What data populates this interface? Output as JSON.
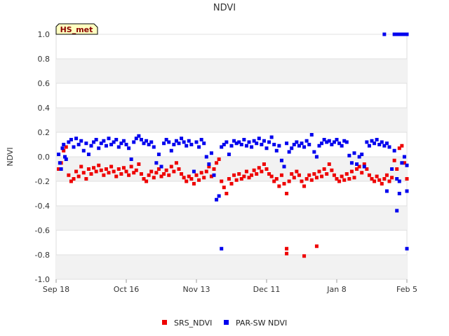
{
  "chart_data": {
    "type": "scatter",
    "title": "NDVI",
    "xlabel": "",
    "ylabel": "NDVI",
    "ylim": [
      -1.0,
      1.0
    ],
    "x_range_days": [
      0,
      140
    ],
    "x_tick_labels": [
      "Sep 18",
      "Oct 16",
      "Nov 13",
      "Dec 11",
      "Jan 8",
      "Feb 5"
    ],
    "x_tick_days": [
      0,
      28,
      56,
      84,
      112,
      140
    ],
    "y_ticks": [
      -1.0,
      -0.8,
      -0.6,
      -0.4,
      -0.2,
      0.0,
      0.2,
      0.4,
      0.6,
      0.8,
      1.0
    ],
    "y_tick_labels": [
      "-1.0",
      "-0.8",
      "-0.6",
      "-0.4",
      "-0.2",
      "0.0",
      "0.2",
      "0.4",
      "0.6",
      "0.8",
      "1.0"
    ],
    "badge": "HS_met",
    "series": [
      {
        "name": "SRS_NDVI",
        "color": "#ee0000",
        "points": [
          [
            1,
            -0.1
          ],
          [
            2,
            -0.05
          ],
          [
            3,
            0.05
          ],
          [
            4,
            0.08
          ],
          [
            5,
            -0.15
          ],
          [
            6,
            -0.2
          ],
          [
            7,
            -0.18
          ],
          [
            8,
            -0.12
          ],
          [
            9,
            -0.16
          ],
          [
            10,
            -0.08
          ],
          [
            11,
            -0.13
          ],
          [
            12,
            -0.18
          ],
          [
            13,
            -0.1
          ],
          [
            14,
            -0.14
          ],
          [
            15,
            -0.09
          ],
          [
            16,
            -0.12
          ],
          [
            17,
            -0.07
          ],
          [
            18,
            -0.11
          ],
          [
            19,
            -0.15
          ],
          [
            20,
            -0.1
          ],
          [
            21,
            -0.13
          ],
          [
            22,
            -0.08
          ],
          [
            23,
            -0.12
          ],
          [
            24,
            -0.16
          ],
          [
            25,
            -0.1
          ],
          [
            26,
            -0.14
          ],
          [
            27,
            -0.09
          ],
          [
            28,
            -0.12
          ],
          [
            29,
            -0.15
          ],
          [
            30,
            -0.08
          ],
          [
            31,
            -0.13
          ],
          [
            32,
            -0.11
          ],
          [
            33,
            -0.06
          ],
          [
            34,
            -0.14
          ],
          [
            35,
            -0.18
          ],
          [
            36,
            -0.2
          ],
          [
            37,
            -0.15
          ],
          [
            38,
            -0.12
          ],
          [
            39,
            -0.17
          ],
          [
            40,
            -0.13
          ],
          [
            41,
            -0.1
          ],
          [
            42,
            -0.16
          ],
          [
            43,
            -0.14
          ],
          [
            44,
            -0.11
          ],
          [
            45,
            -0.15
          ],
          [
            46,
            -0.08
          ],
          [
            47,
            -0.12
          ],
          [
            48,
            -0.05
          ],
          [
            49,
            -0.1
          ],
          [
            50,
            -0.14
          ],
          [
            51,
            -0.17
          ],
          [
            52,
            -0.2
          ],
          [
            53,
            -0.16
          ],
          [
            54,
            -0.18
          ],
          [
            55,
            -0.22
          ],
          [
            56,
            -0.15
          ],
          [
            57,
            -0.19
          ],
          [
            58,
            -0.13
          ],
          [
            59,
            -0.17
          ],
          [
            60,
            -0.12
          ],
          [
            61,
            -0.08
          ],
          [
            62,
            -0.16
          ],
          [
            63,
            -0.1
          ],
          [
            64,
            -0.05
          ],
          [
            65,
            -0.02
          ],
          [
            66,
            -0.2
          ],
          [
            67,
            -0.25
          ],
          [
            68,
            -0.3
          ],
          [
            69,
            -0.18
          ],
          [
            70,
            -0.22
          ],
          [
            71,
            -0.15
          ],
          [
            72,
            -0.19
          ],
          [
            73,
            -0.14
          ],
          [
            74,
            -0.18
          ],
          [
            75,
            -0.16
          ],
          [
            76,
            -0.12
          ],
          [
            77,
            -0.17
          ],
          [
            78,
            -0.15
          ],
          [
            79,
            -0.11
          ],
          [
            80,
            -0.14
          ],
          [
            81,
            -0.09
          ],
          [
            82,
            -0.12
          ],
          [
            83,
            -0.06
          ],
          [
            84,
            -0.1
          ],
          [
            85,
            -0.14
          ],
          [
            86,
            -0.16
          ],
          [
            87,
            -0.2
          ],
          [
            88,
            -0.18
          ],
          [
            89,
            -0.24
          ],
          [
            90,
            -0.15
          ],
          [
            91,
            -0.22
          ],
          [
            92,
            -0.3
          ],
          [
            93,
            -0.2
          ],
          [
            94,
            -0.14
          ],
          [
            95,
            -0.17
          ],
          [
            96,
            -0.12
          ],
          [
            97,
            -0.15
          ],
          [
            98,
            -0.2
          ],
          [
            99,
            -0.24
          ],
          [
            100,
            -0.18
          ],
          [
            101,
            -0.15
          ],
          [
            102,
            -0.19
          ],
          [
            103,
            -0.14
          ],
          [
            104,
            -0.17
          ],
          [
            105,
            -0.12
          ],
          [
            106,
            -0.16
          ],
          [
            107,
            -0.1
          ],
          [
            108,
            -0.14
          ],
          [
            109,
            -0.06
          ],
          [
            110,
            -0.11
          ],
          [
            111,
            -0.15
          ],
          [
            112,
            -0.18
          ],
          [
            113,
            -0.2
          ],
          [
            114,
            -0.16
          ],
          [
            115,
            -0.19
          ],
          [
            116,
            -0.14
          ],
          [
            117,
            -0.18
          ],
          [
            118,
            -0.12
          ],
          [
            119,
            -0.17
          ],
          [
            120,
            -0.1
          ],
          [
            121,
            -0.08
          ],
          [
            122,
            -0.13
          ],
          [
            123,
            -0.06
          ],
          [
            124,
            -0.1
          ],
          [
            125,
            -0.15
          ],
          [
            126,
            -0.18
          ],
          [
            127,
            -0.2
          ],
          [
            128,
            -0.16
          ],
          [
            129,
            -0.19
          ],
          [
            130,
            -0.22
          ],
          [
            131,
            -0.18
          ],
          [
            132,
            -0.15
          ],
          [
            133,
            -0.2
          ],
          [
            134,
            -0.17
          ],
          [
            135,
            -0.03
          ],
          [
            136,
            -0.1
          ],
          [
            137,
            0.07
          ],
          [
            138,
            0.09
          ],
          [
            139,
            -0.05
          ],
          [
            140,
            -0.18
          ],
          [
            92,
            -0.75
          ],
          [
            92,
            -0.79
          ],
          [
            99,
            -0.81
          ],
          [
            104,
            -0.73
          ]
        ]
      },
      {
        "name": "PAR-SW NDVI",
        "color": "#0000ee",
        "points": [
          [
            1,
            0.02
          ],
          [
            1.5,
            -0.05
          ],
          [
            2,
            -0.1
          ],
          [
            2.5,
            0.07
          ],
          [
            3,
            0.1
          ],
          [
            3.5,
            0.0
          ],
          [
            4,
            -0.02
          ],
          [
            5,
            0.12
          ],
          [
            6,
            0.14
          ],
          [
            7,
            0.08
          ],
          [
            8,
            0.15
          ],
          [
            9,
            0.1
          ],
          [
            10,
            0.13
          ],
          [
            11,
            0.05
          ],
          [
            12,
            0.11
          ],
          [
            13,
            0.02
          ],
          [
            14,
            0.09
          ],
          [
            15,
            0.12
          ],
          [
            16,
            0.14
          ],
          [
            17,
            0.07
          ],
          [
            18,
            0.11
          ],
          [
            19,
            0.13
          ],
          [
            20,
            0.09
          ],
          [
            21,
            0.15
          ],
          [
            22,
            0.1
          ],
          [
            23,
            0.12
          ],
          [
            24,
            0.14
          ],
          [
            25,
            0.08
          ],
          [
            26,
            0.11
          ],
          [
            27,
            0.13
          ],
          [
            28,
            0.1
          ],
          [
            29,
            0.07
          ],
          [
            30,
            -0.02
          ],
          [
            31,
            0.12
          ],
          [
            32,
            0.15
          ],
          [
            33,
            0.17
          ],
          [
            34,
            0.14
          ],
          [
            35,
            0.11
          ],
          [
            36,
            0.13
          ],
          [
            37,
            0.1
          ],
          [
            38,
            0.12
          ],
          [
            39,
            0.08
          ],
          [
            40,
            -0.05
          ],
          [
            41,
            0.02
          ],
          [
            42,
            -0.08
          ],
          [
            43,
            0.11
          ],
          [
            44,
            0.14
          ],
          [
            45,
            0.12
          ],
          [
            46,
            0.05
          ],
          [
            47,
            0.1
          ],
          [
            48,
            0.13
          ],
          [
            49,
            0.11
          ],
          [
            50,
            0.15
          ],
          [
            51,
            0.12
          ],
          [
            52,
            0.09
          ],
          [
            53,
            0.13
          ],
          [
            54,
            0.1
          ],
          [
            55,
            -0.12
          ],
          [
            56,
            0.12
          ],
          [
            57,
            0.08
          ],
          [
            58,
            0.14
          ],
          [
            59,
            0.11
          ],
          [
            60,
            0.0
          ],
          [
            61,
            -0.06
          ],
          [
            62,
            0.03
          ],
          [
            63,
            -0.15
          ],
          [
            64,
            -0.35
          ],
          [
            65,
            -0.32
          ],
          [
            66,
            0.08
          ],
          [
            67,
            0.1
          ],
          [
            68,
            0.12
          ],
          [
            69,
            0.02
          ],
          [
            70,
            0.09
          ],
          [
            71,
            0.13
          ],
          [
            72,
            0.11
          ],
          [
            73,
            0.12
          ],
          [
            74,
            0.1
          ],
          [
            75,
            0.14
          ],
          [
            76,
            0.09
          ],
          [
            77,
            0.12
          ],
          [
            78,
            0.08
          ],
          [
            79,
            0.13
          ],
          [
            80,
            0.11
          ],
          [
            81,
            0.15
          ],
          [
            82,
            0.1
          ],
          [
            83,
            0.13
          ],
          [
            84,
            0.07
          ],
          [
            85,
            0.12
          ],
          [
            86,
            0.16
          ],
          [
            87,
            0.1
          ],
          [
            88,
            0.05
          ],
          [
            89,
            0.09
          ],
          [
            90,
            -0.03
          ],
          [
            91,
            -0.08
          ],
          [
            92,
            0.11
          ],
          [
            93,
            0.04
          ],
          [
            94,
            0.07
          ],
          [
            95,
            0.1
          ],
          [
            96,
            0.12
          ],
          [
            97,
            0.09
          ],
          [
            98,
            0.11
          ],
          [
            99,
            0.08
          ],
          [
            100,
            0.13
          ],
          [
            101,
            0.1
          ],
          [
            102,
            0.18
          ],
          [
            103,
            0.04
          ],
          [
            104,
            0.0
          ],
          [
            105,
            0.09
          ],
          [
            106,
            0.11
          ],
          [
            107,
            0.14
          ],
          [
            108,
            0.12
          ],
          [
            109,
            0.13
          ],
          [
            110,
            0.1
          ],
          [
            111,
            0.12
          ],
          [
            112,
            0.14
          ],
          [
            113,
            0.11
          ],
          [
            114,
            0.09
          ],
          [
            115,
            0.13
          ],
          [
            116,
            0.12
          ],
          [
            117,
            0.01
          ],
          [
            118,
            -0.05
          ],
          [
            119,
            0.03
          ],
          [
            120,
            -0.06
          ],
          [
            121,
            0.0
          ],
          [
            122,
            0.02
          ],
          [
            123,
            -0.08
          ],
          [
            124,
            0.12
          ],
          [
            125,
            0.09
          ],
          [
            126,
            0.13
          ],
          [
            127,
            0.11
          ],
          [
            128,
            0.14
          ],
          [
            129,
            0.1
          ],
          [
            130,
            0.12
          ],
          [
            131,
            0.09
          ],
          [
            132,
            0.11
          ],
          [
            133,
            0.08
          ],
          [
            134,
            -0.1
          ],
          [
            135,
            0.05
          ],
          [
            136,
            -0.18
          ],
          [
            137,
            -0.2
          ],
          [
            138,
            -0.05
          ],
          [
            139,
            0.0
          ],
          [
            140,
            -0.07
          ],
          [
            66,
            -0.75
          ],
          [
            132,
            -0.28
          ],
          [
            136,
            -0.44
          ],
          [
            137,
            -0.3
          ],
          [
            140,
            -0.75
          ],
          [
            140,
            -0.28
          ],
          [
            131,
            1.0
          ],
          [
            135,
            1.0
          ],
          [
            136,
            1.0
          ],
          [
            137,
            1.0
          ],
          [
            138,
            1.0
          ],
          [
            139,
            1.0
          ],
          [
            140,
            1.0
          ]
        ]
      }
    ]
  }
}
